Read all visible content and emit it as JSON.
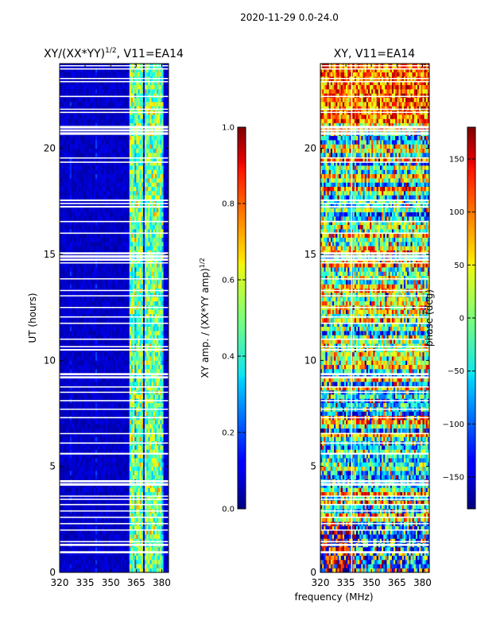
{
  "figure_title": "2020-11-29 0.0-24.0",
  "shared_xlabel": "frequency (MHz)",
  "chart_data": [
    {
      "type": "heatmap",
      "title_main": "XY/(XX*YY)",
      "title_sup": "1/2",
      "title_rest": ", V11=EA14",
      "xlabel": "",
      "ylabel": "UT (hours)",
      "xlim": [
        320,
        384
      ],
      "ylim": [
        0,
        24
      ],
      "xticks": [
        320,
        335,
        350,
        365,
        380
      ],
      "yticks": [
        0,
        5,
        10,
        15,
        20
      ],
      "colormap": "jet",
      "colorbar": {
        "label_main": "XY amp. / (XX*YY amp)",
        "label_sup": "1/2",
        "range": [
          0.0,
          1.0
        ],
        "ticks": [
          "0.0",
          "0.2",
          "0.4",
          "0.6",
          "0.8",
          "1.0"
        ]
      },
      "description": "normalized cross-amplitude: near 0 below ~361 MHz, bright streaks between ~361 and ~380 MHz"
    },
    {
      "type": "heatmap",
      "title_main": "XY, V11=EA14",
      "xlabel": "frequency (MHz)",
      "ylabel": "",
      "xlim": [
        320,
        384
      ],
      "ylim": [
        0,
        24
      ],
      "xticks": [
        320,
        335,
        350,
        365,
        380
      ],
      "yticks": [
        0,
        5,
        10,
        15,
        20
      ],
      "colormap": "jet",
      "colorbar": {
        "label": "phase (deg)",
        "range": [
          -180,
          180
        ],
        "ticks": [
          "−150",
          "−100",
          "−50",
          "0",
          "50",
          "100",
          "150"
        ]
      },
      "description": "cross-hand phase, noisy across full band"
    }
  ],
  "flagged_hours": [
    0.95,
    1.3,
    1.45,
    2.0,
    2.3,
    2.6,
    2.9,
    3.2,
    3.45,
    3.6,
    4.15,
    4.3,
    5.6,
    6.1,
    6.55,
    7.3,
    7.7,
    8.1,
    8.5,
    8.75,
    9.2,
    9.35,
    10.5,
    10.65,
    11.0,
    11.75,
    12.05,
    12.5,
    13.05,
    13.3,
    13.85,
    14.6,
    14.75,
    14.9,
    15.05,
    16.0,
    16.55,
    17.25,
    17.4,
    17.55,
    19.35,
    19.55,
    20.7,
    20.85,
    21.0,
    21.7,
    21.85,
    22.45,
    23.15,
    23.3,
    23.75,
    23.9
  ],
  "flag_widths_hours": [
    0.1,
    0.1,
    0.06,
    0.05,
    0.06,
    0.06,
    0.05,
    0.06,
    0.05,
    0.05,
    0.12,
    0.1,
    0.08,
    0.06,
    0.05,
    0.06,
    0.05,
    0.06,
    0.05,
    0.05,
    0.1,
    0.1,
    0.08,
    0.06,
    0.06,
    0.06,
    0.06,
    0.05,
    0.05,
    0.05,
    0.05,
    0.06,
    0.1,
    0.12,
    0.1,
    0.06,
    0.06,
    0.08,
    0.06,
    0.08,
    0.06,
    0.05,
    0.12,
    0.1,
    0.12,
    0.06,
    0.05,
    0.06,
    0.06,
    0.05,
    0.06,
    0.05
  ]
}
